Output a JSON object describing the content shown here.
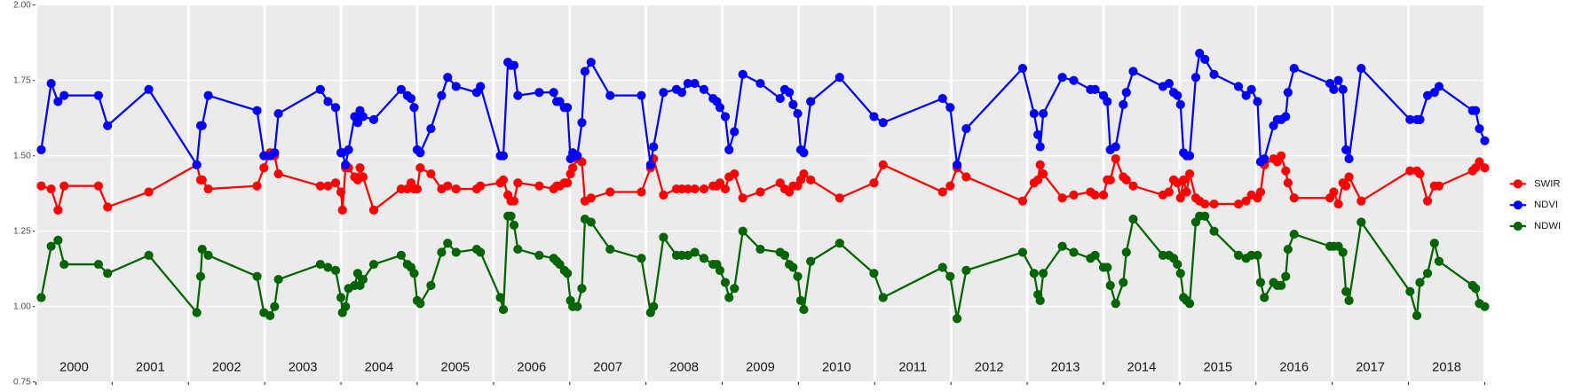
{
  "chart_data": {
    "type": "line",
    "x": [
      2000.07,
      2000.2,
      2000.29,
      2000.37,
      2000.82,
      2000.94,
      2001.48,
      2002.11,
      2002.16,
      2002.18,
      2002.26,
      2002.9,
      2002.99,
      2003.07,
      2003.13,
      2003.18,
      2003.73,
      2003.83,
      2003.93,
      2004.0,
      2004.02,
      2004.06,
      2004.1,
      2004.18,
      2004.22,
      2004.25,
      2004.29,
      2004.43,
      2004.79,
      2004.87,
      2004.92,
      2004.96,
      2005.0,
      2005.04,
      2005.18,
      2005.32,
      2005.4,
      2005.51,
      2005.78,
      2005.83,
      2006.09,
      2006.13,
      2006.19,
      2006.23,
      2006.27,
      2006.32,
      2006.6,
      2006.79,
      2006.83,
      2006.87,
      2006.93,
      2006.97,
      2007.01,
      2007.04,
      2007.1,
      2007.16,
      2007.2,
      2007.28,
      2007.53,
      2007.94,
      2008.06,
      2008.1,
      2008.23,
      2008.4,
      2008.47,
      2008.55,
      2008.64,
      2008.76,
      2008.88,
      2008.93,
      2008.97,
      2009.04,
      2009.09,
      2009.16,
      2009.27,
      2009.5,
      2009.76,
      2009.82,
      2009.88,
      2009.93,
      2009.99,
      2010.03,
      2010.07,
      2010.16,
      2010.54,
      2010.99,
      2011.11,
      2011.89,
      2011.99,
      2012.08,
      2012.2,
      2012.94,
      2013.09,
      2013.14,
      2013.17,
      2013.21,
      2013.46,
      2013.61,
      2013.83,
      2013.89,
      2014.0,
      2014.05,
      2014.09,
      2014.16,
      2014.26,
      2014.3,
      2014.39,
      2014.78,
      2014.86,
      2014.92,
      2014.97,
      2015.01,
      2015.05,
      2015.09,
      2015.13,
      2015.21,
      2015.26,
      2015.33,
      2015.45,
      2015.77,
      2015.87,
      2015.94,
      2016.02,
      2016.06,
      2016.11,
      2016.23,
      2016.28,
      2016.33,
      2016.39,
      2016.42,
      2016.5,
      2016.97,
      2017.02,
      2017.08,
      2017.14,
      2017.18,
      2017.22,
      2017.38,
      2018.02,
      2018.11,
      2018.15,
      2018.25,
      2018.34,
      2018.4,
      2018.84,
      2018.88,
      2018.93,
      2019.0
    ],
    "series": [
      {
        "name": "SWIR",
        "color": "#ff0000",
        "values": [
          1.4,
          1.39,
          1.32,
          1.4,
          1.4,
          1.33,
          1.38,
          1.47,
          1.42,
          1.42,
          1.39,
          1.4,
          1.46,
          1.51,
          1.5,
          1.44,
          1.4,
          1.4,
          1.41,
          1.38,
          1.32,
          1.46,
          1.46,
          1.43,
          1.42,
          1.46,
          1.43,
          1.32,
          1.39,
          1.39,
          1.41,
          1.39,
          1.39,
          1.46,
          1.44,
          1.39,
          1.4,
          1.39,
          1.39,
          1.4,
          1.41,
          1.42,
          1.37,
          1.35,
          1.35,
          1.41,
          1.4,
          1.39,
          1.4,
          1.4,
          1.41,
          1.41,
          1.44,
          1.46,
          1.49,
          1.48,
          1.35,
          1.36,
          1.38,
          1.38,
          1.46,
          1.49,
          1.37,
          1.39,
          1.39,
          1.39,
          1.39,
          1.39,
          1.4,
          1.4,
          1.41,
          1.39,
          1.43,
          1.44,
          1.36,
          1.38,
          1.41,
          1.39,
          1.38,
          1.4,
          1.4,
          1.42,
          1.44,
          1.42,
          1.36,
          1.41,
          1.47,
          1.38,
          1.4,
          1.46,
          1.43,
          1.35,
          1.41,
          1.42,
          1.47,
          1.44,
          1.36,
          1.37,
          1.38,
          1.37,
          1.37,
          1.42,
          1.42,
          1.49,
          1.43,
          1.42,
          1.4,
          1.37,
          1.38,
          1.42,
          1.41,
          1.36,
          1.42,
          1.38,
          1.44,
          1.36,
          1.35,
          1.34,
          1.34,
          1.34,
          1.35,
          1.37,
          1.36,
          1.38,
          1.47,
          1.49,
          1.48,
          1.5,
          1.45,
          1.41,
          1.36,
          1.36,
          1.38,
          1.34,
          1.41,
          1.4,
          1.43,
          1.35,
          1.45,
          1.45,
          1.44,
          1.35,
          1.4,
          1.4,
          1.45,
          1.46,
          1.48,
          1.46
        ]
      },
      {
        "name": "NDVI",
        "color": "#0000ff",
        "values": [
          1.52,
          1.74,
          1.68,
          1.7,
          1.7,
          1.6,
          1.72,
          1.47,
          1.6,
          1.6,
          1.7,
          1.65,
          1.5,
          1.5,
          1.51,
          1.64,
          1.72,
          1.68,
          1.66,
          1.51,
          1.51,
          1.47,
          1.52,
          1.63,
          1.61,
          1.65,
          1.63,
          1.62,
          1.72,
          1.7,
          1.69,
          1.66,
          1.52,
          1.51,
          1.59,
          1.7,
          1.76,
          1.73,
          1.71,
          1.73,
          1.5,
          1.5,
          1.81,
          1.8,
          1.8,
          1.7,
          1.71,
          1.71,
          1.68,
          1.68,
          1.66,
          1.66,
          1.49,
          1.51,
          1.5,
          1.61,
          1.78,
          1.81,
          1.7,
          1.7,
          1.47,
          1.53,
          1.71,
          1.72,
          1.71,
          1.74,
          1.74,
          1.72,
          1.69,
          1.68,
          1.66,
          1.63,
          1.52,
          1.58,
          1.77,
          1.74,
          1.69,
          1.72,
          1.71,
          1.67,
          1.64,
          1.52,
          1.51,
          1.68,
          1.76,
          1.63,
          1.61,
          1.69,
          1.66,
          1.47,
          1.59,
          1.79,
          1.64,
          1.57,
          1.53,
          1.64,
          1.76,
          1.75,
          1.72,
          1.72,
          1.7,
          1.68,
          1.52,
          1.53,
          1.67,
          1.71,
          1.78,
          1.73,
          1.74,
          1.71,
          1.7,
          1.67,
          1.51,
          1.5,
          1.5,
          1.76,
          1.84,
          1.82,
          1.77,
          1.73,
          1.7,
          1.72,
          1.68,
          1.48,
          1.49,
          1.6,
          1.62,
          1.62,
          1.63,
          1.71,
          1.79,
          1.74,
          1.72,
          1.75,
          1.72,
          1.52,
          1.49,
          1.79,
          1.62,
          1.62,
          1.62,
          1.7,
          1.71,
          1.73,
          1.65,
          1.65,
          1.59,
          1.55
        ]
      },
      {
        "name": "NDWI",
        "color": "#006400",
        "values": [
          1.03,
          1.2,
          1.22,
          1.14,
          1.14,
          1.11,
          1.17,
          0.98,
          1.1,
          1.19,
          1.17,
          1.1,
          0.98,
          0.97,
          1.0,
          1.09,
          1.14,
          1.13,
          1.12,
          1.03,
          0.98,
          1.0,
          1.06,
          1.07,
          1.11,
          1.07,
          1.09,
          1.14,
          1.17,
          1.14,
          1.13,
          1.11,
          1.02,
          1.01,
          1.07,
          1.18,
          1.21,
          1.18,
          1.19,
          1.18,
          1.03,
          0.99,
          1.3,
          1.3,
          1.27,
          1.19,
          1.17,
          1.16,
          1.15,
          1.14,
          1.12,
          1.11,
          1.02,
          1.0,
          1.0,
          1.06,
          1.29,
          1.28,
          1.19,
          1.16,
          0.98,
          1.0,
          1.23,
          1.17,
          1.17,
          1.17,
          1.18,
          1.16,
          1.14,
          1.14,
          1.12,
          1.08,
          1.03,
          1.06,
          1.25,
          1.19,
          1.18,
          1.17,
          1.14,
          1.13,
          1.1,
          1.02,
          0.99,
          1.15,
          1.21,
          1.11,
          1.03,
          1.13,
          1.1,
          0.96,
          1.12,
          1.18,
          1.11,
          1.04,
          1.02,
          1.11,
          1.2,
          1.18,
          1.16,
          1.17,
          1.13,
          1.13,
          1.07,
          1.01,
          1.08,
          1.18,
          1.29,
          1.17,
          1.17,
          1.16,
          1.14,
          1.11,
          1.03,
          1.02,
          1.01,
          1.28,
          1.3,
          1.3,
          1.25,
          1.17,
          1.16,
          1.17,
          1.17,
          1.08,
          1.03,
          1.08,
          1.07,
          1.07,
          1.1,
          1.19,
          1.24,
          1.2,
          1.2,
          1.2,
          1.18,
          1.05,
          1.02,
          1.28,
          1.05,
          0.97,
          1.08,
          1.11,
          1.21,
          1.15,
          1.07,
          1.06,
          1.01,
          1.0
        ]
      }
    ],
    "xlim": [
      2000,
      2019
    ],
    "xticks": [
      2000,
      2001,
      2002,
      2003,
      2004,
      2005,
      2006,
      2007,
      2008,
      2009,
      2010,
      2011,
      2012,
      2013,
      2014,
      2015,
      2016,
      2017,
      2018,
      2019
    ],
    "year_labels": [
      "2000",
      "2001",
      "2002",
      "2003",
      "2004",
      "2005",
      "2006",
      "2007",
      "2008",
      "2009",
      "2010",
      "2011",
      "2012",
      "2013",
      "2014",
      "2015",
      "2016",
      "2017",
      "2018"
    ],
    "ylim": [
      0.75,
      2.0
    ],
    "yticks": [
      {
        "value": 0.75,
        "label": "0.75"
      },
      {
        "value": 1.0,
        "label": "1.00"
      },
      {
        "value": 1.25,
        "label": "1.25"
      },
      {
        "value": 1.5,
        "label": "1.50"
      },
      {
        "value": 1.75,
        "label": "1.75"
      },
      {
        "value": 2.0,
        "label": "2.00"
      }
    ],
    "grid": true,
    "legend": "right"
  }
}
